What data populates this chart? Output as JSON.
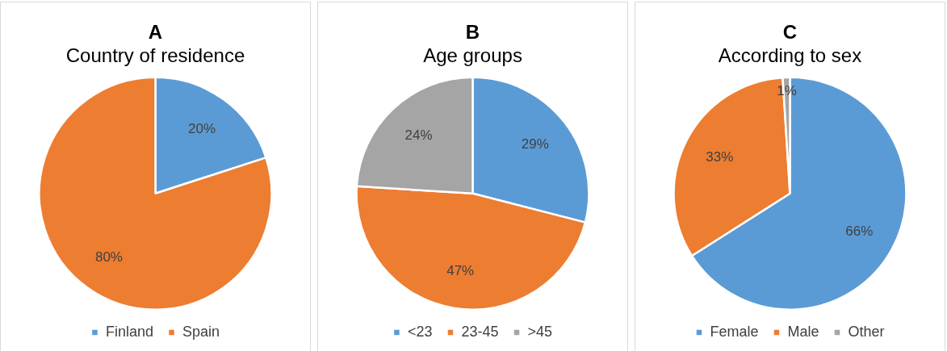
{
  "chart_data": [
    {
      "type": "pie",
      "title": "A",
      "subtitle": "Country of residence",
      "categories": [
        "Finland",
        "Spain"
      ],
      "values": [
        20,
        80
      ],
      "colors": [
        "#5b9bd5",
        "#ed7d31"
      ],
      "value_labels": [
        "20%",
        "80%"
      ],
      "legend": "bottom"
    },
    {
      "type": "pie",
      "title": "B",
      "subtitle": "Age groups",
      "categories": [
        "<23",
        "23-45",
        ">45"
      ],
      "values": [
        29,
        47,
        24
      ],
      "colors": [
        "#5b9bd5",
        "#ed7d31",
        "#a5a5a5"
      ],
      "value_labels": [
        "29%",
        "47%",
        "24%"
      ],
      "legend": "bottom"
    },
    {
      "type": "pie",
      "title": "C",
      "subtitle": "According to sex",
      "categories": [
        "Female",
        "Male",
        "Other"
      ],
      "values": [
        66,
        33,
        1
      ],
      "colors": [
        "#5b9bd5",
        "#ed7d31",
        "#a5a5a5"
      ],
      "value_labels": [
        "66%",
        "33%",
        "1%"
      ],
      "legend": "bottom"
    }
  ]
}
